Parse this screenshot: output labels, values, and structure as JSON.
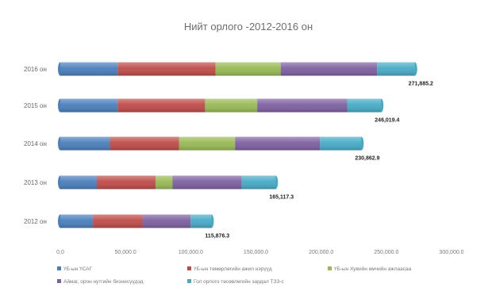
{
  "chart_data": {
    "type": "bar",
    "orientation": "horizontal",
    "stacked": true,
    "title": "Нийт орлого -2012-2016 он",
    "categories": [
      "2016 он",
      "2015 он",
      "2014 он",
      "2013 он",
      "2012 он"
    ],
    "x_ticks": [
      "0,0",
      "50,000.0",
      "100,000.0",
      "150,000.0",
      "200,000.0",
      "250,000.0",
      "300,000.0"
    ],
    "xlim": [
      0,
      300000
    ],
    "grid": false,
    "legend_position": "bottom",
    "totals_labels": [
      "271,885.2",
      "246,019.4",
      "230,862.9",
      "165,117.3",
      "115,876.3"
    ],
    "totals": [
      271885.2,
      246019.4,
      230862.9,
      165117.3,
      115876.3
    ],
    "series": [
      {
        "name": "ҮБ-ын ҮСАГ",
        "color": "#4a7ebb",
        "values": [
          44000,
          44000,
          38000,
          28000,
          25000
        ]
      },
      {
        "name": "ҮБ-ын төмөрлөгийн ажил нэрүүд",
        "color": "#be4b48",
        "values": [
          75000,
          67000,
          53000,
          45000,
          38000
        ]
      },
      {
        "name": "ҮБ-ын Хувийн өмчийн ажлаасаа",
        "color": "#98b954",
        "values": [
          50000,
          40000,
          43000,
          13000,
          0
        ]
      },
      {
        "name": "Аймаг, орон нутгийн бизнесүүдэд",
        "color": "#7d60a0",
        "values": [
          74000,
          69000,
          65000,
          53000,
          37000
        ]
      },
      {
        "name": "Гол орлого төсөвлөгийн зардал ТЗЗ-с",
        "color": "#46aac5",
        "values": [
          28885.2,
          26019.4,
          31862.9,
          26117.3,
          15876.3
        ]
      }
    ]
  }
}
